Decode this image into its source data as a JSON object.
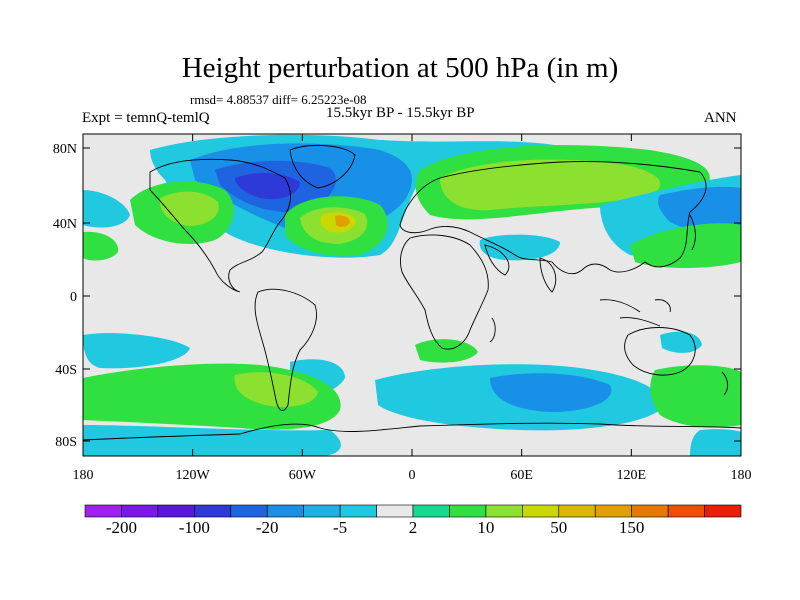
{
  "title": "Height perturbation at 500 hPa (in m)",
  "stats": "rmsd= 4.88537 diff= 6.25223e-08",
  "experiment": "Expt = temnQ-temlQ",
  "period": "15.5kyr BP - 15.5kyr BP",
  "season": "ANN",
  "axes": {
    "lon_ticks": [
      "180",
      "120W",
      "60W",
      "0",
      "60E",
      "120E",
      "180"
    ],
    "lat_ticks": [
      "80N",
      "40N",
      "0",
      "40S",
      "80S"
    ]
  },
  "colorbar": {
    "labels": [
      "-200",
      "-100",
      "-20",
      "-5",
      "2",
      "10",
      "50",
      "150"
    ],
    "colors": [
      "#a020f0",
      "#7a18e8",
      "#5a18d8",
      "#2e3ad8",
      "#1e64e0",
      "#1890e8",
      "#20b0e8",
      "#20c8e0",
      "#e8e8e8",
      "#18d890",
      "#30e040",
      "#8ce030",
      "#c8d800",
      "#d8b800",
      "#e0a000",
      "#e87800",
      "#ec5000",
      "#e82000"
    ]
  },
  "colors": {
    "land_outline": "#000000",
    "background": "#e8e8e8"
  }
}
